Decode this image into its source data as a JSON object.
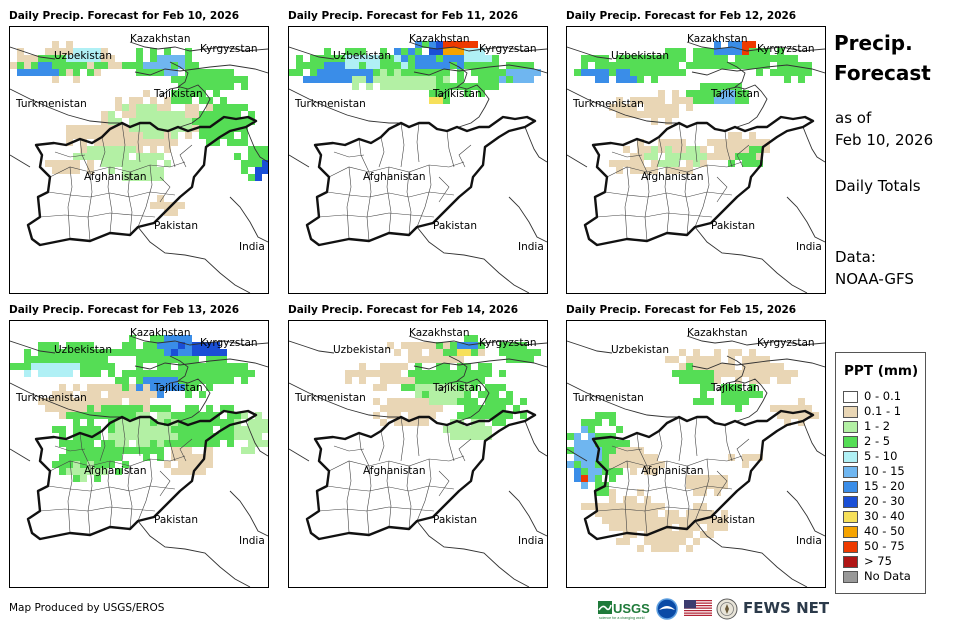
{
  "panels": [
    {
      "title": "Daily Precip. Forecast for Feb 10, 2026"
    },
    {
      "title": "Daily Precip. Forecast for Feb 11, 2026"
    },
    {
      "title": "Daily Precip. Forecast for Feb 12, 2026"
    },
    {
      "title": "Daily Precip. Forecast for Feb 13, 2026"
    },
    {
      "title": "Daily Precip. Forecast for Feb 14, 2026"
    },
    {
      "title": "Daily Precip. Forecast for Feb 15, 2026"
    }
  ],
  "map_labels": {
    "kazakhstan": "Kazakhstan",
    "kyrgyzstan": "Kyrgyzstan",
    "uzbekistan": "Uzbekistan",
    "tajikistan": "Tajikistan",
    "turkmenistan": "Turkmenistan",
    "afghanistan": "Afghanistan",
    "pakistan": "Pakistan",
    "india": "India"
  },
  "sidebar": {
    "title_line1": "Precip.",
    "title_line2": "Forecast",
    "as_of_line1": "as of",
    "as_of_line2": "Feb 10, 2026",
    "daily_totals": "Daily Totals",
    "data_line1": "Data:",
    "data_line2": "NOAA-GFS"
  },
  "legend": {
    "title": "PPT (mm)",
    "items": [
      {
        "label": "0 - 0.1",
        "color": "#ffffff"
      },
      {
        "label": "0.1 - 1",
        "color": "#e9d6b5"
      },
      {
        "label": "1 - 2",
        "color": "#b3f0a4"
      },
      {
        "label": "2 - 5",
        "color": "#55dd55"
      },
      {
        "label": "5 - 10",
        "color": "#b0f0f5"
      },
      {
        "label": "10 - 15",
        "color": "#6fb6f0"
      },
      {
        "label": "15 - 20",
        "color": "#3a8de8"
      },
      {
        "label": "20 - 30",
        "color": "#1a4fd6"
      },
      {
        "label": "30 - 40",
        "color": "#f6e05a"
      },
      {
        "label": "40 - 50",
        "color": "#f5a300"
      },
      {
        "label": "50 - 75",
        "color": "#ee3a00"
      },
      {
        "label": "> 75",
        "color": "#b01515"
      },
      {
        "label": "No Data",
        "color": "#999999"
      }
    ]
  },
  "footer": {
    "credit": "Map Produced by USGS/EROS",
    "usgs_logo": "USGS",
    "usgs_tagline": "science for a changing world",
    "fews_logo": "FEWS NET"
  }
}
